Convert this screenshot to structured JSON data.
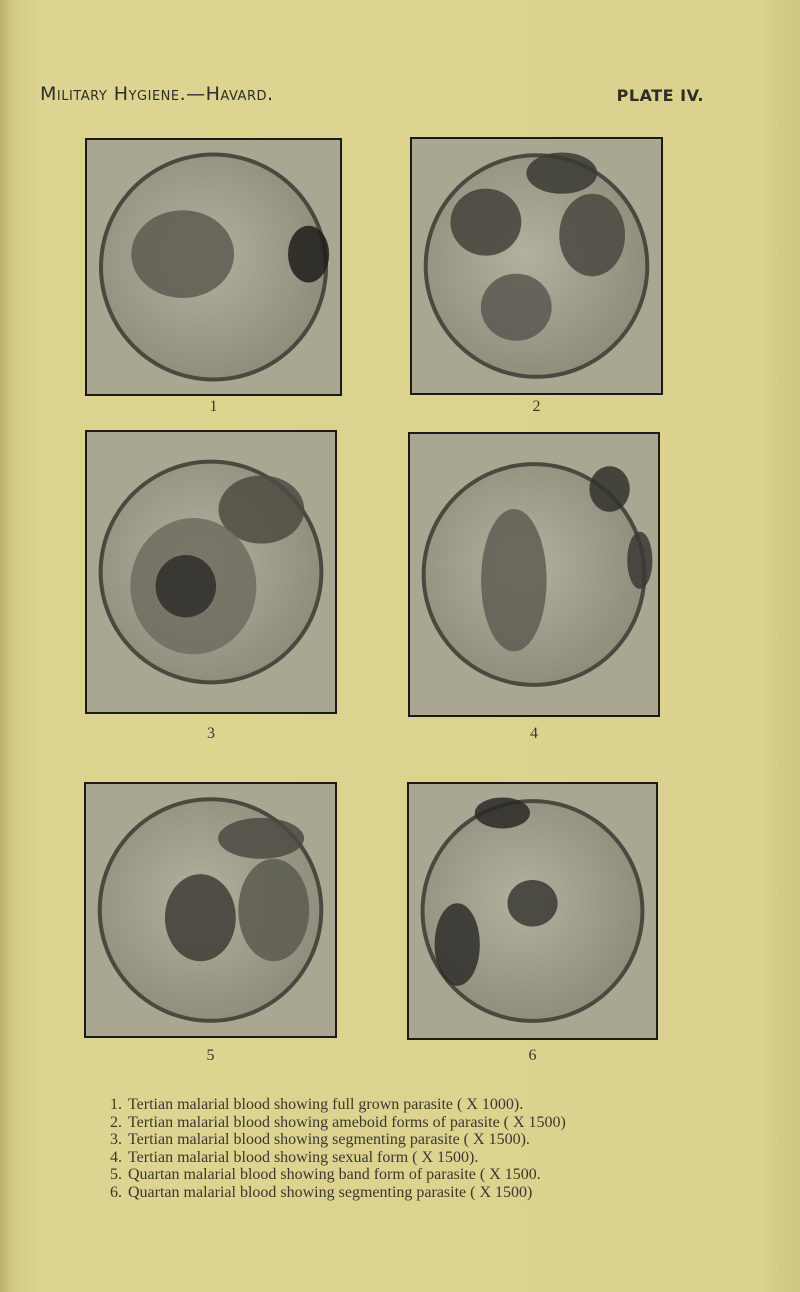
{
  "header": {
    "left": "Military Hygiene.—Havard.",
    "right": "PLATE IV."
  },
  "figures": [
    {
      "label": "1"
    },
    {
      "label": "2"
    },
    {
      "label": "3"
    },
    {
      "label": "4"
    },
    {
      "label": "5"
    },
    {
      "label": "6"
    }
  ],
  "captions": [
    {
      "number": "1.",
      "text": "Tertian malarial blood showing full grown parasite ( X 1000)."
    },
    {
      "number": "2.",
      "text": "Tertian malarial blood showing ameboid forms of parasite ( X 1500)"
    },
    {
      "number": "3.",
      "text": "Tertian malarial blood showing segmenting parasite ( X 1500)."
    },
    {
      "number": "4.",
      "text": "Tertian malarial blood showing sexual form ( X 1500)."
    },
    {
      "number": "5.",
      "text": "Quartan malarial blood showing band form of parasite ( X 1500."
    },
    {
      "number": "6.",
      "text": "Quartan malarial blood showing segmenting parasite ( X 1500)"
    }
  ]
}
